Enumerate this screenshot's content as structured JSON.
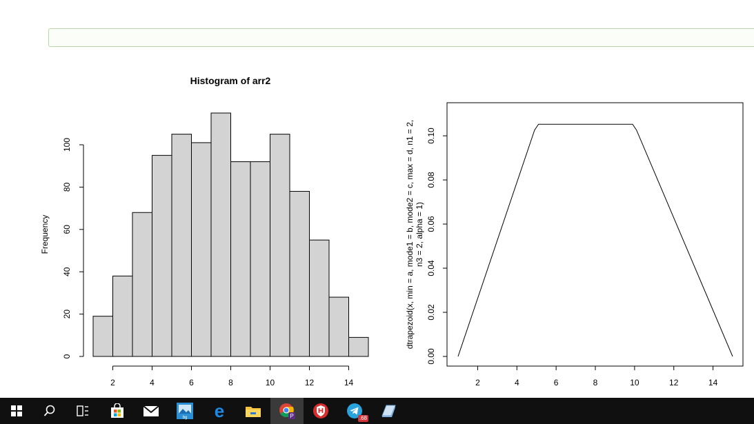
{
  "chart_data": [
    {
      "type": "bar",
      "title": "Histogram of arr2",
      "xlabel": "",
      "ylabel": "Frequency",
      "bins": [
        {
          "from": 1,
          "to": 2,
          "count": 19
        },
        {
          "from": 2,
          "to": 3,
          "count": 38
        },
        {
          "from": 3,
          "to": 4,
          "count": 68
        },
        {
          "from": 4,
          "to": 5,
          "count": 95
        },
        {
          "from": 5,
          "to": 6,
          "count": 105
        },
        {
          "from": 6,
          "to": 7,
          "count": 101
        },
        {
          "from": 7,
          "to": 8,
          "count": 115
        },
        {
          "from": 8,
          "to": 9,
          "count": 92
        },
        {
          "from": 9,
          "to": 10,
          "count": 92
        },
        {
          "from": 10,
          "to": 11,
          "count": 105
        },
        {
          "from": 11,
          "to": 12,
          "count": 78
        },
        {
          "from": 12,
          "to": 13,
          "count": 55
        },
        {
          "from": 13,
          "to": 14,
          "count": 28
        },
        {
          "from": 14,
          "to": 15,
          "count": 9
        }
      ],
      "xticks": [
        "2",
        "4",
        "6",
        "8",
        "10",
        "12",
        "14"
      ],
      "yticks": [
        "0",
        "20",
        "40",
        "60",
        "80",
        "100"
      ],
      "xlim": [
        1,
        15
      ],
      "ylim": [
        0,
        115
      ],
      "bar_color": "#d3d3d3",
      "grid": false
    },
    {
      "type": "line",
      "title": "",
      "xlabel": "",
      "ylabel_line1": "dtrapezoid(x, min = a, mode1 = b, mode2 = c, max = d, n1 = 2,",
      "ylabel_line2": "n3 = 2, alpha = 1)",
      "x": [
        1,
        4.9,
        5.1,
        9.9,
        10.1,
        15
      ],
      "y": [
        0,
        0.1026,
        0.10526,
        0.10526,
        0.1026,
        0
      ],
      "xticks": [
        "2",
        "4",
        "6",
        "8",
        "10",
        "12",
        "14"
      ],
      "yticks": [
        "0.00",
        "0.02",
        "0.04",
        "0.06",
        "0.08",
        "0.10"
      ],
      "xlim": [
        1,
        15
      ],
      "ylim": [
        0,
        0.10526
      ],
      "grid": false,
      "framed": true
    }
  ],
  "taskbar": {
    "icons": [
      "windows-start-icon",
      "search-icon",
      "task-view-icon",
      "store-icon",
      "mail-icon",
      "photos-app-icon",
      "edge-icon",
      "file-explorer-icon",
      "chrome-icon",
      "shield-app-icon",
      "telegram-icon",
      "notes-app-icon"
    ],
    "telegram_badge": ".68",
    "background": "#101010"
  }
}
